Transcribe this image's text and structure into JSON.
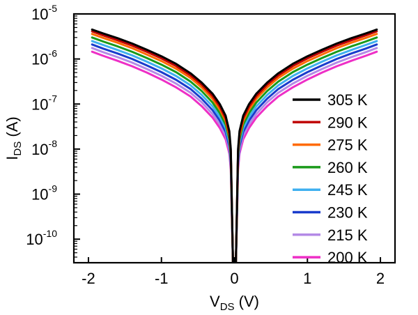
{
  "chart_data": {
    "type": "line",
    "title": "",
    "xlabel": {
      "main": "V",
      "sub": "DS",
      "unit": " (V)"
    },
    "ylabel": {
      "main": "I",
      "sub": "DS",
      "unit": " (A)"
    },
    "xlim": [
      -2.2,
      2.2
    ],
    "ylim": [
      3e-11,
      1e-05
    ],
    "yscale": "log",
    "xticks": [
      -2,
      -1,
      0,
      1,
      2
    ],
    "xtick_labels": [
      "-2",
      "-1",
      "0",
      "1",
      "2"
    ],
    "yticks": [
      {
        "value": 1e-10,
        "base": "10",
        "exp": "-10"
      },
      {
        "value": 1e-09,
        "base": "10",
        "exp": "-9"
      },
      {
        "value": 1e-08,
        "base": "10",
        "exp": "-8"
      },
      {
        "value": 1e-07,
        "base": "10",
        "exp": "-7"
      },
      {
        "value": 1e-06,
        "base": "10",
        "exp": "-6"
      },
      {
        "value": 1e-05,
        "base": "10",
        "exp": "-5"
      }
    ],
    "grid": false,
    "legend_position": "right",
    "x": [
      -1.95,
      -1.8,
      -1.6,
      -1.4,
      -1.2,
      -1.0,
      -0.8,
      -0.6,
      -0.45,
      -0.3,
      -0.2,
      -0.12,
      -0.07,
      -0.05,
      -0.02,
      0.02,
      0.05,
      0.07,
      0.12,
      0.2,
      0.3,
      0.45,
      0.6,
      0.8,
      1.0,
      1.2,
      1.4,
      1.6,
      1.8,
      1.95
    ],
    "series": [
      {
        "name": "305 K",
        "color": "#000000",
        "values": [
          4.5e-06,
          3.7e-06,
          2.9e-06,
          2.2e-06,
          1.6e-06,
          1.15e-06,
          7.8e-07,
          4.8e-07,
          3e-07,
          1.7e-07,
          1e-07,
          5.5e-08,
          2.5e-08,
          1e-08,
          3e-11,
          3e-11,
          1e-08,
          2.5e-08,
          5.5e-08,
          1e-07,
          1.7e-07,
          3e-07,
          4.8e-07,
          7.8e-07,
          1.15e-06,
          1.6e-06,
          2.2e-06,
          2.9e-06,
          3.7e-06,
          4.5e-06
        ]
      },
      {
        "name": "290 K",
        "color": "#c00000",
        "values": [
          4.1e-06,
          3.35e-06,
          2.6e-06,
          1.98e-06,
          1.44e-06,
          1.03e-06,
          7e-07,
          4.3e-07,
          2.7e-07,
          1.5e-07,
          8.8e-08,
          4.8e-08,
          2.2e-08,
          9e-09,
          3e-11,
          3e-11,
          9e-09,
          2.2e-08,
          4.8e-08,
          8.8e-08,
          1.5e-07,
          2.7e-07,
          4.3e-07,
          7e-07,
          1.03e-06,
          1.44e-06,
          1.98e-06,
          2.6e-06,
          3.35e-06,
          4.1e-06
        ]
      },
      {
        "name": "275 K",
        "color": "#ff6a00",
        "values": [
          3.6e-06,
          2.95e-06,
          2.3e-06,
          1.74e-06,
          1.26e-06,
          9e-07,
          6.1e-07,
          3.8e-07,
          2.35e-07,
          1.3e-07,
          7.6e-08,
          4.2e-08,
          1.95e-08,
          8e-09,
          3e-11,
          3e-11,
          8e-09,
          1.95e-08,
          4.2e-08,
          7.6e-08,
          1.3e-07,
          2.35e-07,
          3.8e-07,
          6.1e-07,
          9e-07,
          1.26e-06,
          1.74e-06,
          2.3e-06,
          2.95e-06,
          3.6e-06
        ]
      },
      {
        "name": "260 K",
        "color": "#1a9a1a",
        "values": [
          3e-06,
          2.45e-06,
          1.9e-06,
          1.44e-06,
          1.05e-06,
          7.5e-07,
          5.1e-07,
          3.15e-07,
          1.95e-07,
          1.08e-07,
          6.3e-08,
          3.5e-08,
          1.65e-08,
          7e-09,
          3e-11,
          3e-11,
          7e-09,
          1.65e-08,
          3.5e-08,
          6.3e-08,
          1.08e-07,
          1.95e-07,
          3.15e-07,
          5.1e-07,
          7.5e-07,
          1.05e-06,
          1.44e-06,
          1.9e-06,
          2.45e-06,
          3e-06
        ]
      },
      {
        "name": "245 K",
        "color": "#3fb0f0",
        "values": [
          2.5e-06,
          2.05e-06,
          1.58e-06,
          1.2e-06,
          8.7e-07,
          6.2e-07,
          4.2e-07,
          2.6e-07,
          1.6e-07,
          8.9e-08,
          5.2e-08,
          2.9e-08,
          1.38e-08,
          6e-09,
          3e-11,
          3e-11,
          6e-09,
          1.38e-08,
          2.9e-08,
          5.2e-08,
          8.9e-08,
          1.6e-07,
          2.6e-07,
          4.2e-07,
          6.2e-07,
          8.7e-07,
          1.2e-06,
          1.58e-06,
          2.05e-06,
          2.5e-06
        ]
      },
      {
        "name": "230 K",
        "color": "#1a3ccc",
        "values": [
          2.1e-06,
          1.7e-06,
          1.32e-06,
          1e-06,
          7.2e-07,
          5.1e-07,
          3.45e-07,
          2.15e-07,
          1.32e-07,
          7.3e-08,
          4.3e-08,
          2.4e-08,
          1.15e-08,
          5e-09,
          3e-11,
          3e-11,
          5e-09,
          1.15e-08,
          2.4e-08,
          4.3e-08,
          7.3e-08,
          1.32e-07,
          2.15e-07,
          3.45e-07,
          5.1e-07,
          7.2e-07,
          1e-06,
          1.32e-06,
          1.7e-06,
          2.1e-06
        ]
      },
      {
        "name": "215 K",
        "color": "#b48ae6",
        "values": [
          1.75e-06,
          1.42e-06,
          1.1e-06,
          8.3e-07,
          6e-07,
          4.25e-07,
          2.85e-07,
          1.78e-07,
          1.1e-07,
          6e-08,
          3.55e-08,
          2e-08,
          9.5e-09,
          4.2e-09,
          3e-11,
          3e-11,
          4.2e-09,
          9.5e-09,
          2e-08,
          3.55e-08,
          6e-08,
          1.1e-07,
          1.78e-07,
          2.85e-07,
          4.25e-07,
          6e-07,
          8.3e-07,
          1.1e-06,
          1.42e-06,
          1.75e-06
        ]
      },
      {
        "name": "200 K",
        "color": "#ee2fc6",
        "values": [
          1.45e-06,
          1.18e-06,
          9.1e-07,
          6.9e-07,
          5e-07,
          3.5e-07,
          2.35e-07,
          1.47e-07,
          9e-08,
          5e-08,
          2.95e-08,
          1.65e-08,
          8e-09,
          3.5e-09,
          3e-11,
          3e-11,
          3.5e-09,
          8e-09,
          1.65e-08,
          2.95e-08,
          5e-08,
          9e-08,
          1.47e-07,
          2.35e-07,
          3.5e-07,
          5e-07,
          6.9e-07,
          9.1e-07,
          1.18e-06,
          1.45e-06
        ]
      }
    ]
  }
}
